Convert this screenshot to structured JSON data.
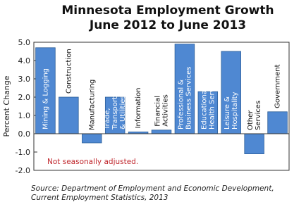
{
  "chart_data": {
    "type": "bar",
    "title": "Minnesota Employment Growth",
    "subtitle": "June 2012 to June 2013",
    "y_label": "Percent Change",
    "annotation": "Not seasonally adjusted.",
    "source": [
      "Source: Department of Employment and Economic Development,",
      "Current Employment Statistics, 2013"
    ],
    "categories": [
      "Mining & Logging",
      "Construction",
      "Manufacturing",
      "Trade,\nTransportation\n& Utilities",
      "Information",
      "Financial\nActivities",
      "Professional &\nBusiness Services",
      "Educational &\nHealth Services",
      "Leisure &\nHospitality",
      "Other\nServices",
      "Government"
    ],
    "values": [
      4.7,
      2.0,
      -0.5,
      2.0,
      0.1,
      0.2,
      4.9,
      2.3,
      4.5,
      -1.1,
      1.2
    ],
    "color": "#4f88d2",
    "ylim": [
      -2,
      5
    ],
    "yticks": [
      {
        "value": -2,
        "label": "-2.0"
      },
      {
        "value": -1,
        "label": "-1.0"
      },
      {
        "value": 0,
        "label": "0.0"
      },
      {
        "value": 1,
        "label": "1.0"
      },
      {
        "value": 2,
        "label": "2.0"
      },
      {
        "value": 3,
        "label": "3.0"
      },
      {
        "value": 4,
        "label": "4.0"
      },
      {
        "value": 5,
        "label": "5.0"
      }
    ],
    "grid": false
  }
}
